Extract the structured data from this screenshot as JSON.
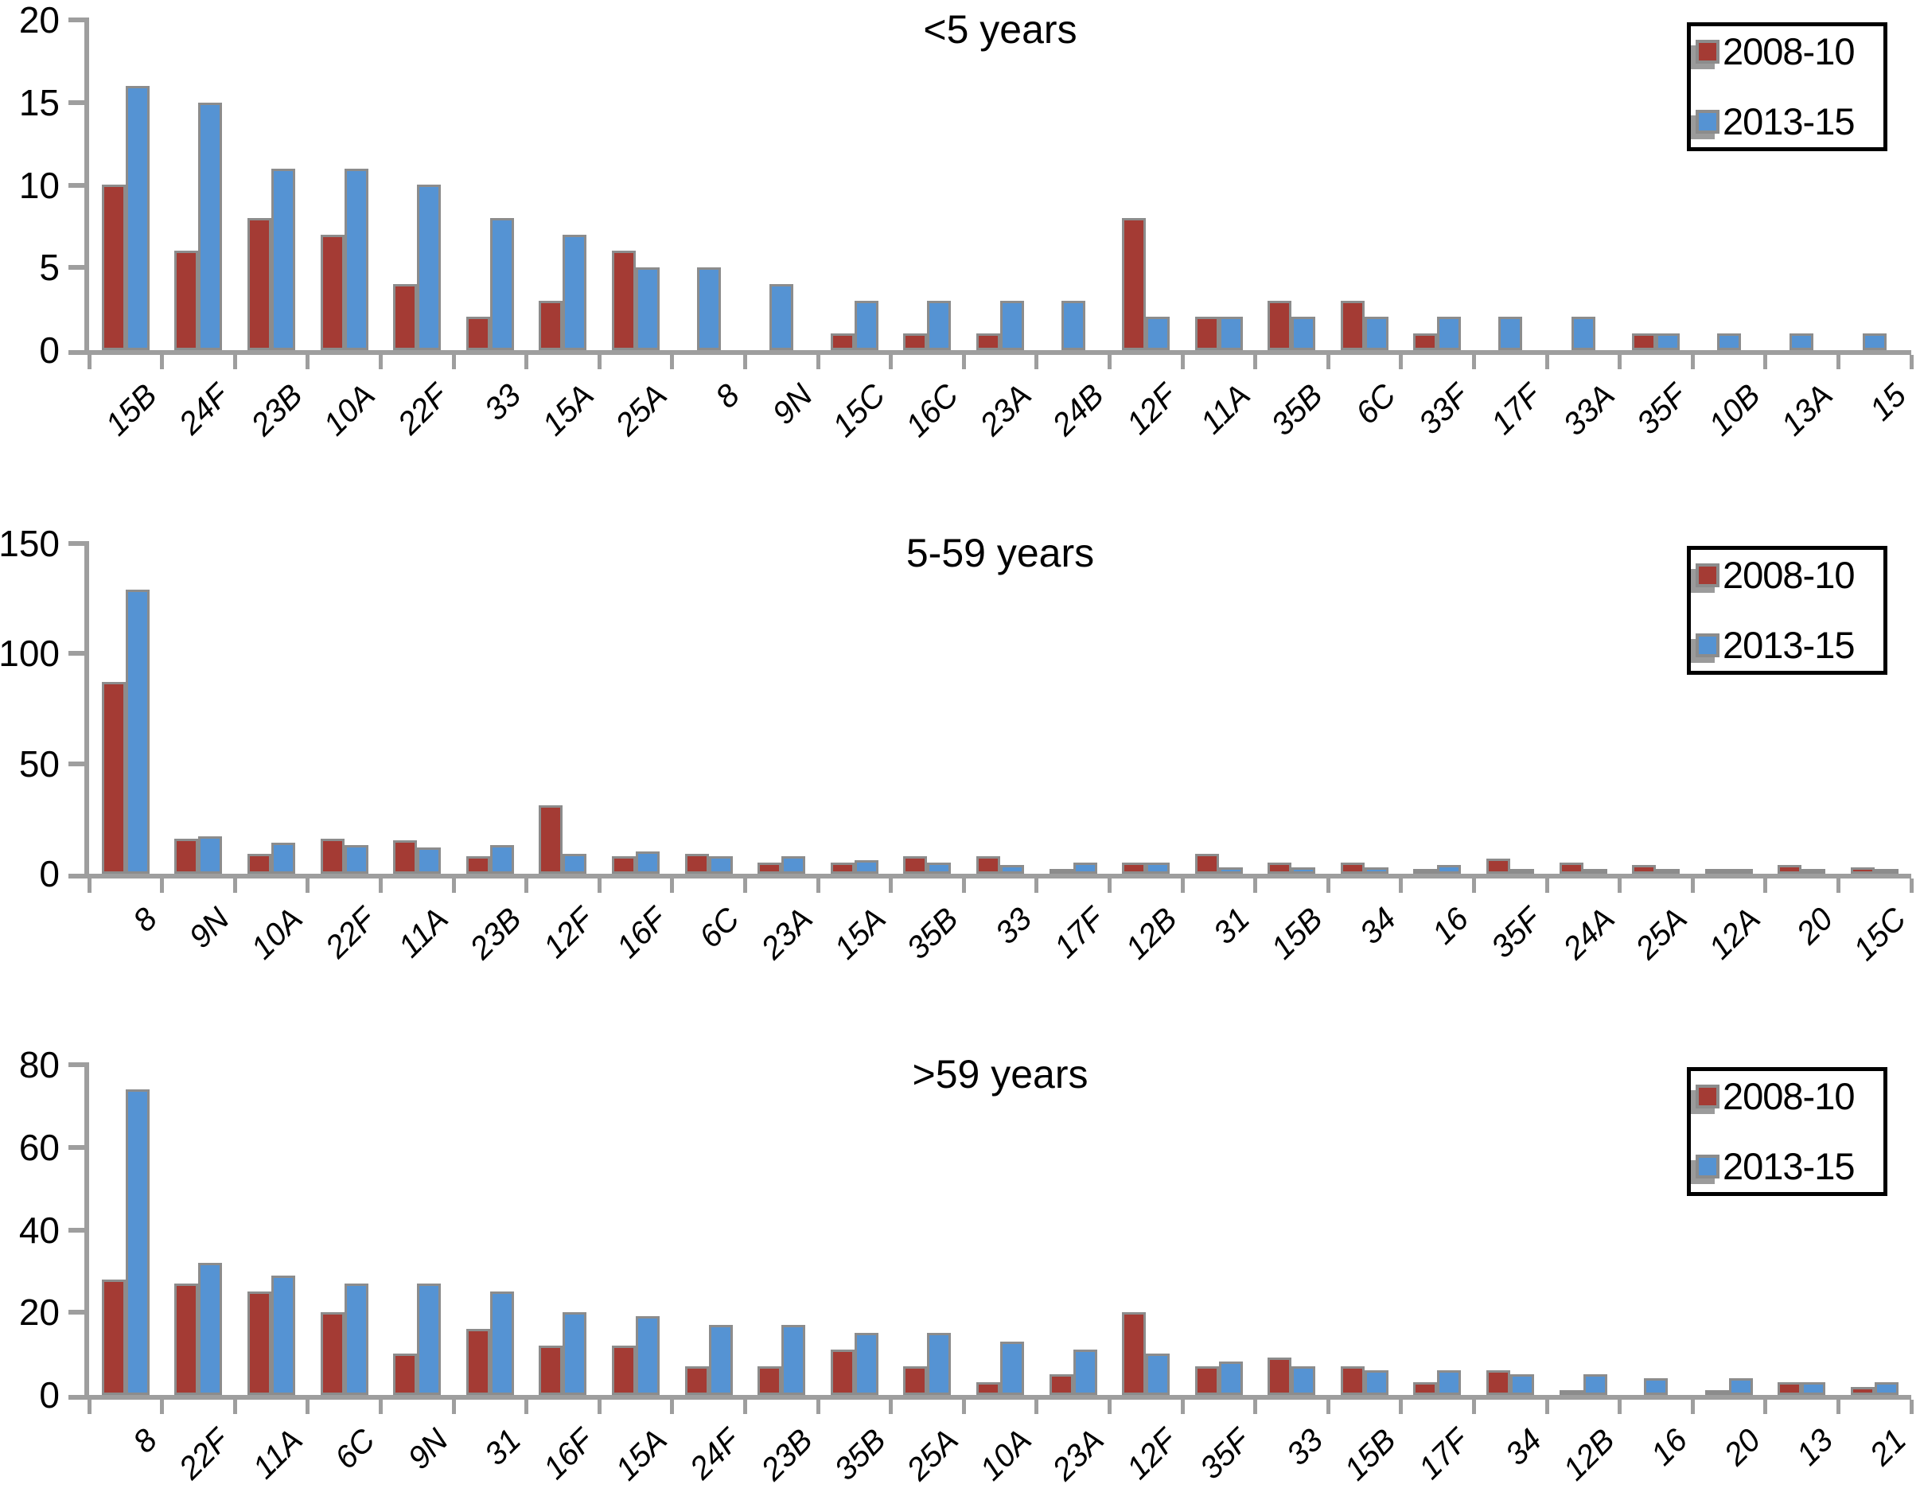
{
  "colors": {
    "series1": "#a43b34",
    "series2": "#5593d3",
    "bar_border": "#8c8c8c",
    "axis": "#9e9e9e",
    "legend_border": "#000000",
    "text": "#000000"
  },
  "legend": {
    "series1_label": "2008-10",
    "series2_label": "2013-15"
  },
  "chart_data": [
    {
      "type": "bar",
      "title": "<5 years",
      "xlabel": "",
      "ylabel": "",
      "ylim": [
        0,
        20
      ],
      "yticks": [
        0,
        5,
        10,
        15,
        20
      ],
      "grid": false,
      "legend_position": "top-right",
      "categories": [
        "15B",
        "24F",
        "23B",
        "10A",
        "22F",
        "33",
        "15A",
        "25A",
        "8",
        "9N",
        "15C",
        "16C",
        "23A",
        "24B",
        "12F",
        "11A",
        "35B",
        "6C",
        "33F",
        "17F",
        "33A",
        "35F",
        "10B",
        "13A",
        "15"
      ],
      "series": [
        {
          "name": "2008-10",
          "color_key": "series1",
          "values": [
            10,
            6,
            8,
            7,
            4,
            2,
            3,
            6,
            0,
            0,
            1,
            1,
            1,
            0,
            8,
            2,
            3,
            3,
            1,
            0,
            0,
            1,
            0,
            0,
            0
          ]
        },
        {
          "name": "2013-15",
          "color_key": "series2",
          "values": [
            16,
            15,
            11,
            11,
            10,
            8,
            7,
            5,
            5,
            4,
            3,
            3,
            3,
            3,
            2,
            2,
            2,
            2,
            2,
            2,
            2,
            1,
            1,
            1,
            1
          ]
        }
      ]
    },
    {
      "type": "bar",
      "title": "5-59 years",
      "xlabel": "",
      "ylabel": "",
      "ylim": [
        0,
        150
      ],
      "yticks": [
        0,
        50,
        100,
        150
      ],
      "grid": false,
      "legend_position": "top-right",
      "categories": [
        "8",
        "9N",
        "10A",
        "22F",
        "11A",
        "23B",
        "12F",
        "16F",
        "6C",
        "23A",
        "15A",
        "35B",
        "33",
        "17F",
        "12B",
        "31",
        "15B",
        "34",
        "16",
        "35F",
        "24A",
        "25A",
        "12A",
        "20",
        "15C"
      ],
      "series": [
        {
          "name": "2008-10",
          "color_key": "series1",
          "values": [
            87,
            16,
            9,
            16,
            15,
            8,
            31,
            8,
            9,
            5,
            5,
            8,
            8,
            2,
            5,
            9,
            5,
            5,
            1,
            7,
            5,
            4,
            1,
            4,
            3
          ]
        },
        {
          "name": "2013-15",
          "color_key": "series2",
          "values": [
            129,
            17,
            14,
            13,
            12,
            13,
            9,
            10,
            8,
            8,
            6,
            5,
            4,
            5,
            5,
            3,
            3,
            3,
            4,
            2,
            1,
            1,
            1,
            1,
            1
          ]
        }
      ]
    },
    {
      "type": "bar",
      "title": ">59 years",
      "xlabel": "",
      "ylabel": "",
      "ylim": [
        0,
        80
      ],
      "yticks": [
        0,
        20,
        40,
        60,
        80
      ],
      "grid": false,
      "legend_position": "top-right",
      "categories": [
        "8",
        "22F",
        "11A",
        "6C",
        "9N",
        "31",
        "16F",
        "15A",
        "24F",
        "23B",
        "35B",
        "25A",
        "10A",
        "23A",
        "12F",
        "35F",
        "33",
        "15B",
        "17F",
        "34",
        "12B",
        "16",
        "20",
        "13",
        "21"
      ],
      "series": [
        {
          "name": "2008-10",
          "color_key": "series1",
          "values": [
            28,
            27,
            25,
            20,
            10,
            16,
            12,
            12,
            7,
            7,
            11,
            7,
            3,
            5,
            20,
            7,
            9,
            7,
            3,
            6,
            1,
            0,
            1,
            3,
            2
          ]
        },
        {
          "name": "2013-15",
          "color_key": "series2",
          "values": [
            74,
            32,
            29,
            27,
            27,
            25,
            20,
            19,
            17,
            17,
            15,
            15,
            13,
            11,
            10,
            8,
            7,
            6,
            6,
            5,
            5,
            4,
            4,
            3,
            3
          ]
        }
      ]
    }
  ]
}
